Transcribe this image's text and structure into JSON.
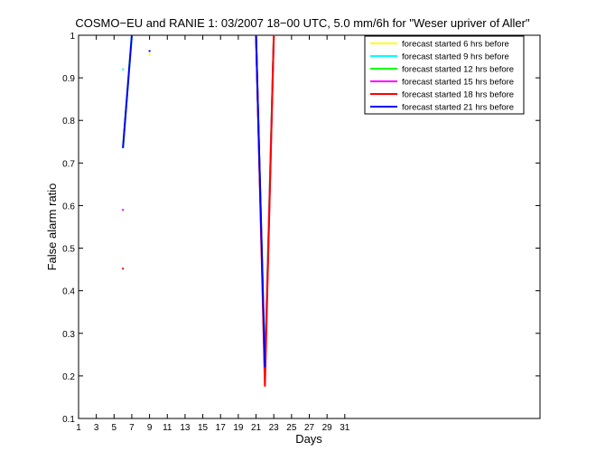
{
  "chart_data": {
    "type": "line",
    "title": "COSMO−EU and RANIE 1: 03/2007 18−00 UTC, 5.0 mm/6h for \"Weser upriver of Aller\"",
    "xlabel": "Days",
    "ylabel": "False alarm ratio",
    "xlim": [
      1,
      53
    ],
    "ylim": [
      0.1,
      1
    ],
    "xticks": [
      "1",
      "3",
      "5",
      "7",
      "9",
      "11",
      "13",
      "15",
      "17",
      "19",
      "21",
      "23",
      "25",
      "27",
      "29",
      "31"
    ],
    "yticks": [
      "0.1",
      "0.2",
      "0.3",
      "0.4",
      "0.5",
      "0.6",
      "0.7",
      "0.8",
      "0.9",
      "1"
    ],
    "grid": false,
    "legend_position": "top-right",
    "series": [
      {
        "name": "forecast started 6 hrs before",
        "color": "#ffff00",
        "points": [
          [
            9,
            0.955
          ],
          [
            21,
            1.0
          ],
          [
            22,
            0.22
          ],
          [
            23,
            1.0
          ]
        ]
      },
      {
        "name": "forecast started 9 hrs before",
        "color": "#00ffff",
        "points": [
          [
            6,
            0.92
          ],
          [
            21,
            1.0
          ],
          [
            22,
            0.22
          ],
          [
            23,
            1.0
          ]
        ]
      },
      {
        "name": "forecast started 12 hrs before",
        "color": "#00ff00",
        "points": [
          [
            6,
            0.735
          ],
          [
            7,
            1.0
          ],
          [
            21,
            1.0
          ],
          [
            22,
            0.21
          ],
          [
            23,
            1.0
          ]
        ]
      },
      {
        "name": "forecast started 15 hrs before",
        "color": "#ff00ff",
        "points": [
          [
            6,
            0.59
          ],
          [
            9,
            1.0
          ],
          [
            21,
            1.0
          ],
          [
            22,
            0.2
          ],
          [
            23,
            1.0
          ]
        ]
      },
      {
        "name": "forecast started 18 hrs before",
        "color": "#ff0000",
        "points": [
          [
            6,
            0.452
          ],
          [
            9,
            1.0
          ],
          [
            21,
            1.0
          ],
          [
            22,
            0.175
          ],
          [
            23,
            1.0
          ]
        ]
      },
      {
        "name": "forecast started 21 hrs before",
        "color": "#0000ff",
        "points": [
          [
            6,
            0.735
          ],
          [
            7,
            1.0
          ],
          [
            9,
            0.963
          ],
          [
            21,
            1.0
          ],
          [
            22,
            0.22
          ]
        ]
      }
    ]
  }
}
